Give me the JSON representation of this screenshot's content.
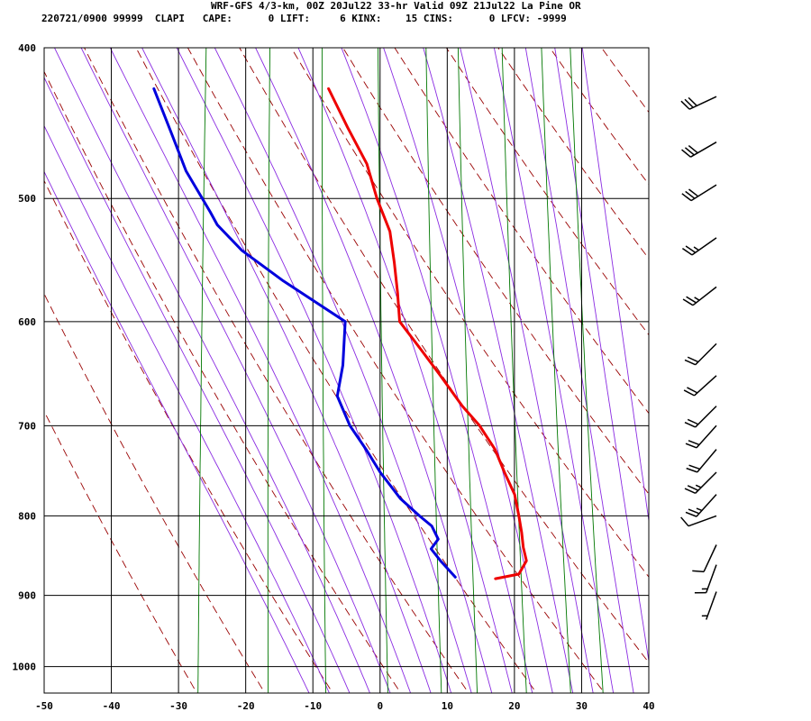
{
  "header": {
    "line1": "WRF-GFS 4/3-km, 00Z 20Jul22 33-hr Valid 09Z 21Jul22 La Pine OR",
    "line2": "220721/0900 99999  CLAPI   CAPE:      0 LIFT:     6 KINX:    15 CINS:      0 LFCV: -9999"
  },
  "colors": {
    "temperature": "#ee0000",
    "dewpoint": "#0000dd",
    "isotherm": "#000000",
    "dry_adiabat": "#990000",
    "moist_adiabat": "#8a2be2",
    "mixing_ratio": "#007700",
    "wind": "#000000"
  },
  "chart_data": {
    "type": "line",
    "subtype": "skew-t log-p sounding",
    "xlim": [
      -50,
      40
    ],
    "ylim_pressure": [
      1040,
      400
    ],
    "x_ticks": [
      "-50",
      "-40",
      "-30",
      "-20",
      "-10",
      "0",
      "10",
      "20",
      "30",
      "40"
    ],
    "y_ticks": [
      "400",
      "500",
      "600",
      "700",
      "800",
      "900",
      "1000"
    ],
    "grid": true,
    "series": [
      {
        "key": "temperature",
        "points": [
          {
            "p": 878,
            "t": 15.2
          },
          {
            "p": 872,
            "t": 18.6
          },
          {
            "p": 855,
            "t": 19.5
          },
          {
            "p": 838,
            "t": 18.8
          },
          {
            "p": 820,
            "t": 18.3
          },
          {
            "p": 800,
            "t": 17.6
          },
          {
            "p": 775,
            "t": 16.6
          },
          {
            "p": 750,
            "t": 14.7
          },
          {
            "p": 725,
            "t": 12.9
          },
          {
            "p": 700,
            "t": 10.2
          },
          {
            "p": 680,
            "t": 7.3
          },
          {
            "p": 650,
            "t": 3.5
          },
          {
            "p": 625,
            "t": 0.1
          },
          {
            "p": 600,
            "t": -3.5
          },
          {
            "p": 575,
            "t": -4.3
          },
          {
            "p": 550,
            "t": -5.3
          },
          {
            "p": 525,
            "t": -6.5
          },
          {
            "p": 500,
            "t": -9.0
          },
          {
            "p": 475,
            "t": -11.1
          },
          {
            "p": 450,
            "t": -14.6
          },
          {
            "p": 425,
            "t": -18.1
          }
        ]
      },
      {
        "key": "dewpoint",
        "points": [
          {
            "p": 876,
            "t": 9.2
          },
          {
            "p": 865,
            "t": 7.9
          },
          {
            "p": 855,
            "t": 6.7
          },
          {
            "p": 840,
            "t": 5.1
          },
          {
            "p": 828,
            "t": 6.0
          },
          {
            "p": 812,
            "t": 4.8
          },
          {
            "p": 800,
            "t": 2.8
          },
          {
            "p": 780,
            "t": -0.3
          },
          {
            "p": 750,
            "t": -3.8
          },
          {
            "p": 725,
            "t": -6.3
          },
          {
            "p": 700,
            "t": -9.1
          },
          {
            "p": 670,
            "t": -11.5
          },
          {
            "p": 640,
            "t": -11.2
          },
          {
            "p": 600,
            "t": -11.6
          },
          {
            "p": 565,
            "t": -21.5
          },
          {
            "p": 540,
            "t": -28.2
          },
          {
            "p": 520,
            "t": -32.3
          },
          {
            "p": 510,
            "t": -33.6
          },
          {
            "p": 500,
            "t": -35.0
          },
          {
            "p": 480,
            "t": -37.9
          },
          {
            "p": 455,
            "t": -40.6
          },
          {
            "p": 425,
            "t": -44.1
          }
        ]
      }
    ],
    "wind_barbs": [
      {
        "p": 430,
        "dir": 245,
        "spd": 30
      },
      {
        "p": 460,
        "dir": 240,
        "spd": 30
      },
      {
        "p": 490,
        "dir": 238,
        "spd": 30
      },
      {
        "p": 530,
        "dir": 235,
        "spd": 25
      },
      {
        "p": 570,
        "dir": 232,
        "spd": 25
      },
      {
        "p": 620,
        "dir": 225,
        "spd": 20
      },
      {
        "p": 650,
        "dir": 228,
        "spd": 20
      },
      {
        "p": 680,
        "dir": 225,
        "spd": 20
      },
      {
        "p": 700,
        "dir": 222,
        "spd": 20
      },
      {
        "p": 725,
        "dir": 220,
        "spd": 20
      },
      {
        "p": 750,
        "dir": 225,
        "spd": 25
      },
      {
        "p": 775,
        "dir": 222,
        "spd": 25
      },
      {
        "p": 800,
        "dir": 250,
        "spd": 10
      },
      {
        "p": 835,
        "dir": 205,
        "spd": 10
      },
      {
        "p": 860,
        "dir": 200,
        "spd": 15
      },
      {
        "p": 895,
        "dir": 200,
        "spd": 5
      }
    ]
  }
}
